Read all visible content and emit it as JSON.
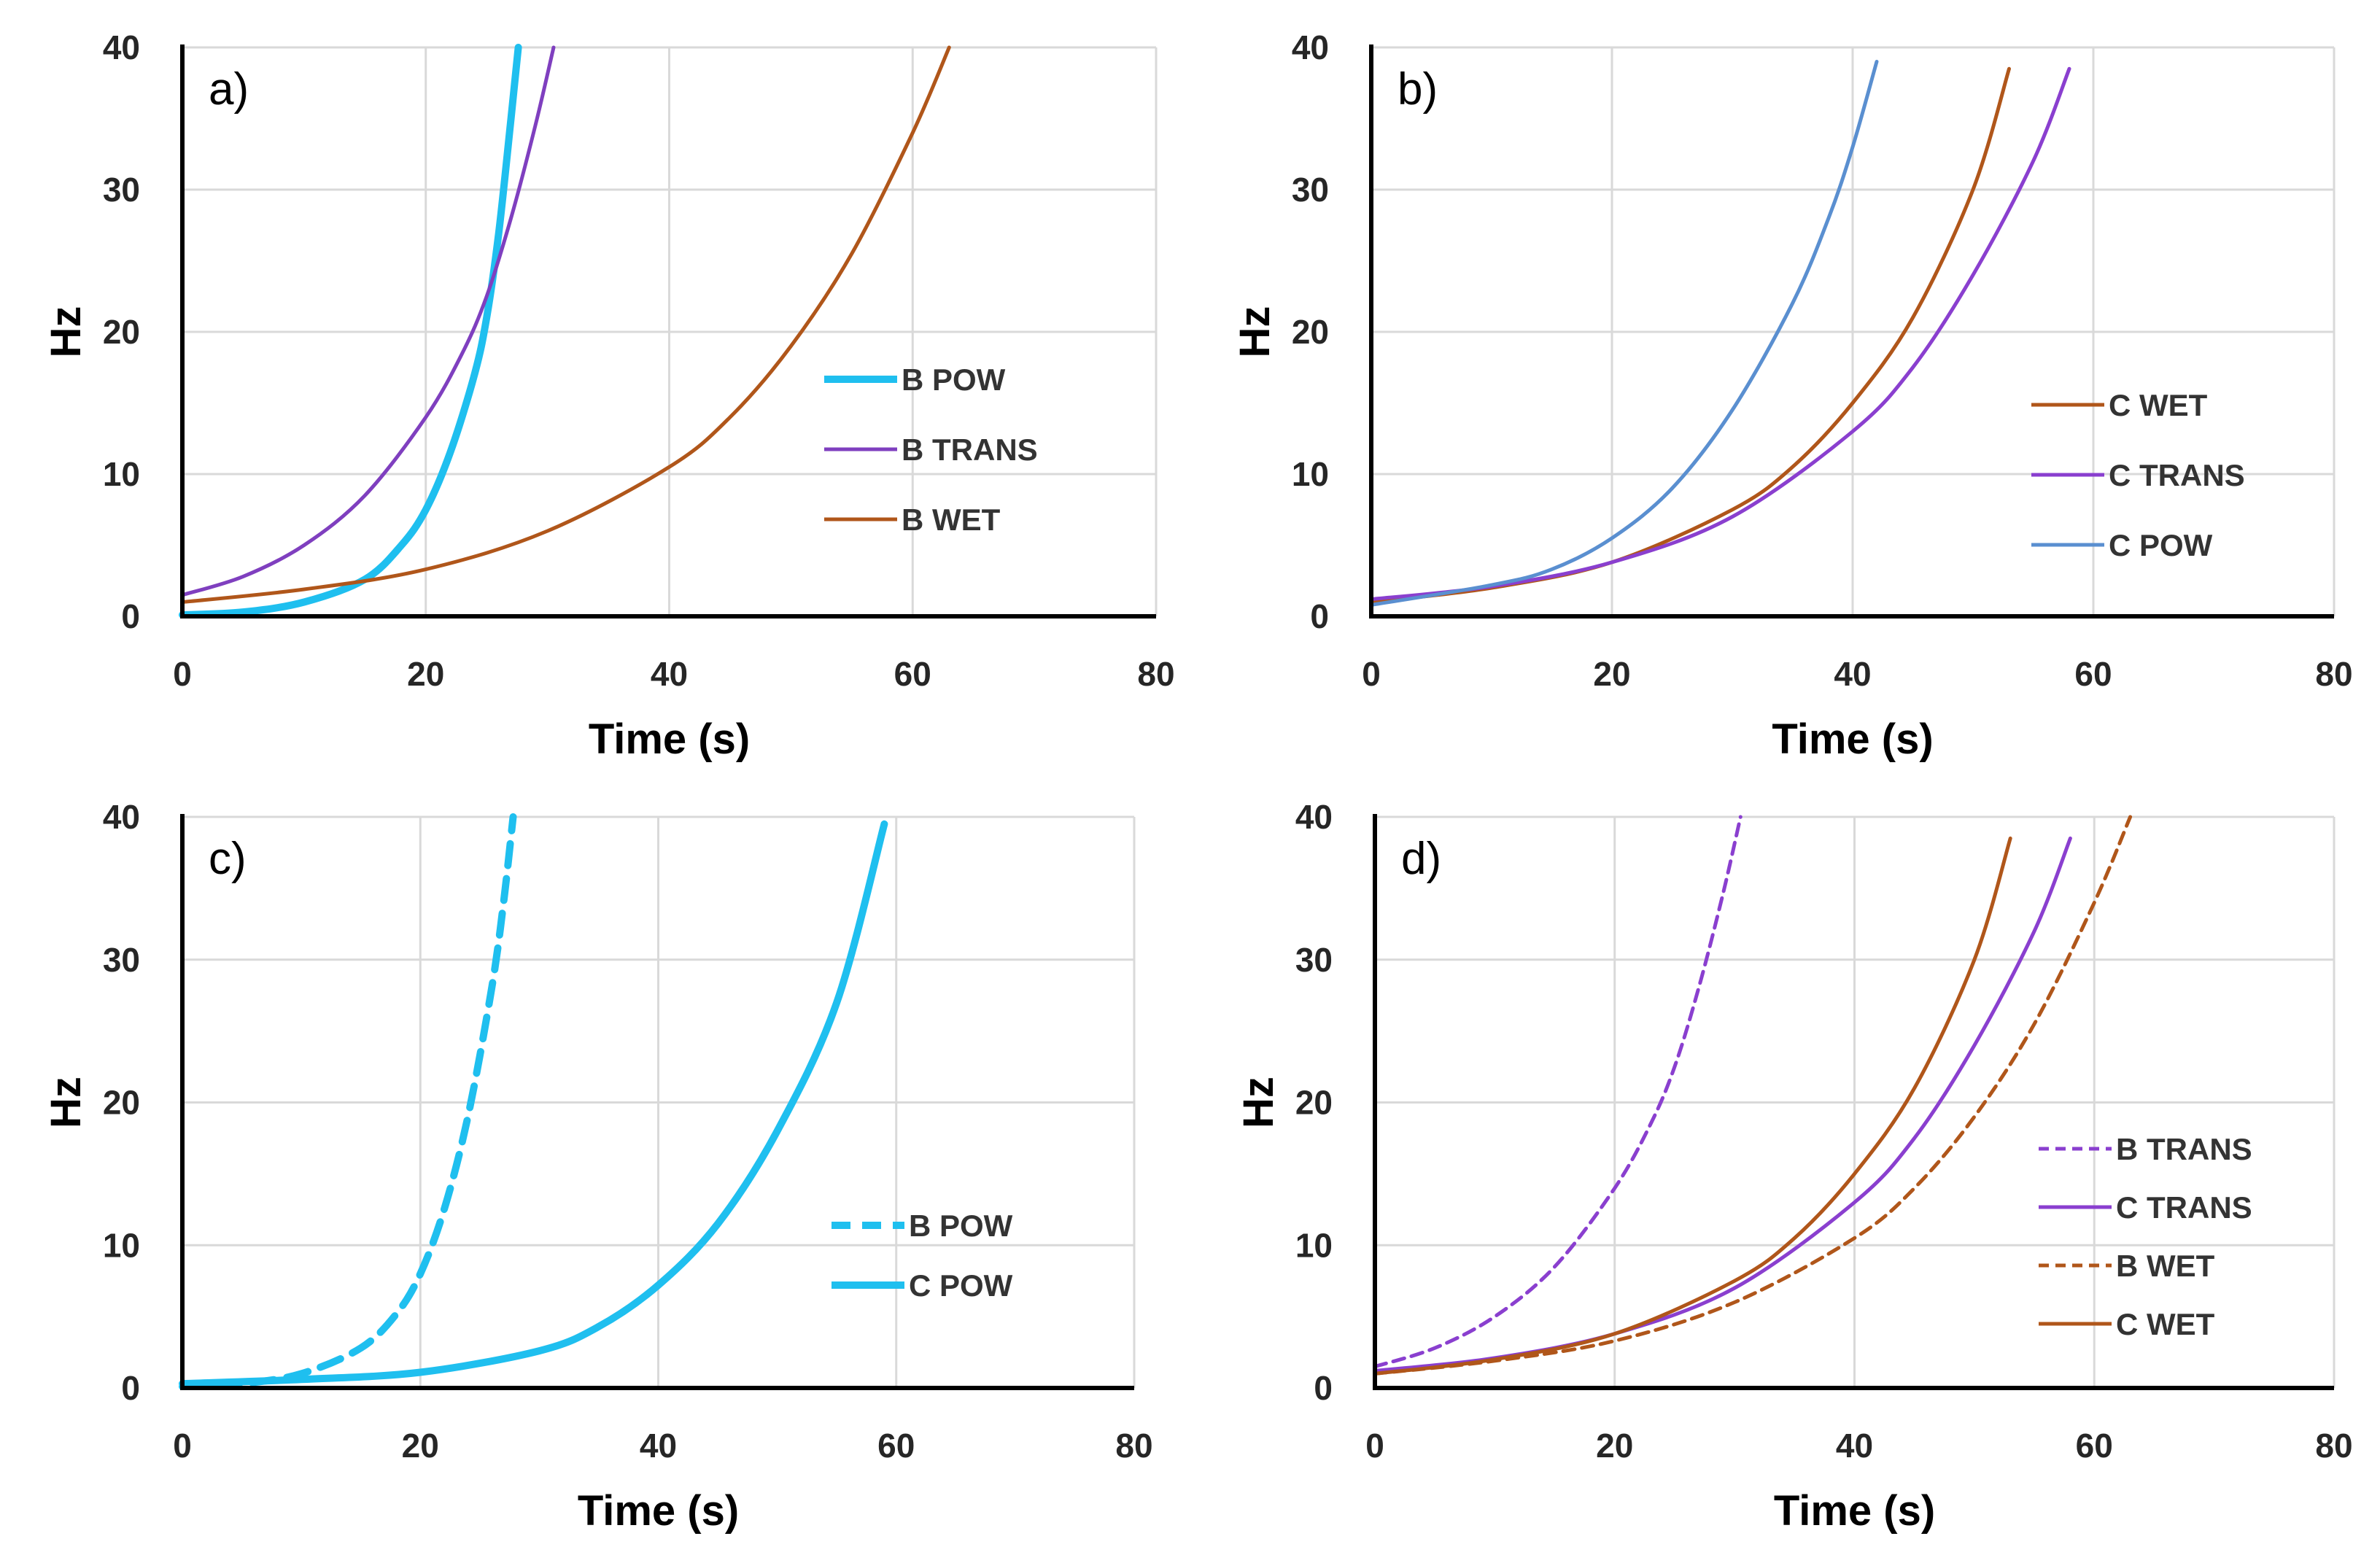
{
  "chart_data": [
    {
      "type": "line",
      "panel_label": "a)",
      "xlabel": "Time (s)",
      "ylabel": "Hz",
      "xlim": [
        0,
        80
      ],
      "ylim": [
        0,
        40
      ],
      "xticks": [
        "0",
        "20",
        "40",
        "60",
        "80"
      ],
      "yticks": [
        "0",
        "10",
        "20",
        "30",
        "40"
      ],
      "grid": true,
      "legend_position": "center-right",
      "series": [
        {
          "name": "B POW",
          "color": "#1fbfef",
          "dash": "solid",
          "width": "thick",
          "points": [
            [
              0,
              0.1
            ],
            [
              5,
              0.3
            ],
            [
              10,
              1.0
            ],
            [
              15,
              2.6
            ],
            [
              18,
              5.0
            ],
            [
              20,
              7.5
            ],
            [
              22,
              11.5
            ],
            [
              24,
              17.0
            ],
            [
              25,
              21.0
            ],
            [
              26,
              27.0
            ],
            [
              27,
              35.0
            ],
            [
              27.6,
              40.0
            ]
          ]
        },
        {
          "name": "B TRANS",
          "color": "#7f3fbf",
          "dash": "solid",
          "width": "normal",
          "points": [
            [
              0,
              1.5
            ],
            [
              5,
              2.8
            ],
            [
              10,
              5.0
            ],
            [
              15,
              8.5
            ],
            [
              20,
              14.0
            ],
            [
              23,
              18.5
            ],
            [
              25,
              22.5
            ],
            [
              27,
              28.0
            ],
            [
              29,
              34.5
            ],
            [
              30.5,
              40.0
            ]
          ]
        },
        {
          "name": "B WET",
          "color": "#b0561a",
          "dash": "solid",
          "width": "normal",
          "points": [
            [
              0,
              1.0
            ],
            [
              10,
              1.9
            ],
            [
              20,
              3.3
            ],
            [
              30,
              6.0
            ],
            [
              40,
              10.5
            ],
            [
              45,
              14.0
            ],
            [
              50,
              19.0
            ],
            [
              55,
              25.5
            ],
            [
              60,
              34.0
            ],
            [
              63,
              40.0
            ]
          ]
        }
      ]
    },
    {
      "type": "line",
      "panel_label": "b)",
      "xlabel": "Time (s)",
      "ylabel": "Hz",
      "xlim": [
        0,
        80
      ],
      "ylim": [
        0,
        40
      ],
      "xticks": [
        "0",
        "20",
        "40",
        "60",
        "80"
      ],
      "yticks": [
        "0",
        "10",
        "20",
        "30",
        "40"
      ],
      "grid": true,
      "legend_position": "bottom-right",
      "series": [
        {
          "name": "C WET",
          "color": "#b0561a",
          "dash": "solid",
          "width": "normal",
          "points": [
            [
              0,
              1.0
            ],
            [
              10,
              2.0
            ],
            [
              20,
              3.8
            ],
            [
              30,
              7.5
            ],
            [
              35,
              10.5
            ],
            [
              40,
              15.0
            ],
            [
              45,
              21.0
            ],
            [
              50,
              30.0
            ],
            [
              53,
              38.5
            ]
          ]
        },
        {
          "name": "C TRANS",
          "color": "#8a3fcf",
          "dash": "solid",
          "width": "normal",
          "points": [
            [
              0,
              1.2
            ],
            [
              10,
              2.1
            ],
            [
              20,
              3.8
            ],
            [
              30,
              7.0
            ],
            [
              40,
              13.0
            ],
            [
              45,
              17.5
            ],
            [
              50,
              24.0
            ],
            [
              55,
              32.0
            ],
            [
              58,
              38.5
            ]
          ]
        },
        {
          "name": "C POW",
          "color": "#5a8fd0",
          "dash": "solid",
          "width": "normal",
          "points": [
            [
              0,
              0.8
            ],
            [
              10,
              2.2
            ],
            [
              15,
              3.3
            ],
            [
              20,
              5.5
            ],
            [
              25,
              9.0
            ],
            [
              30,
              14.5
            ],
            [
              35,
              22.0
            ],
            [
              38,
              28.0
            ],
            [
              40,
              33.0
            ],
            [
              42,
              39.0
            ]
          ]
        }
      ]
    },
    {
      "type": "line",
      "panel_label": "c)",
      "xlabel": "Time (s)",
      "ylabel": "Hz",
      "xlim": [
        0,
        80
      ],
      "ylim": [
        0,
        40
      ],
      "xticks": [
        "0",
        "20",
        "40",
        "60",
        "80"
      ],
      "yticks": [
        "0",
        "10",
        "20",
        "30",
        "40"
      ],
      "grid": true,
      "legend_position": "center-right",
      "series": [
        {
          "name": "B POW",
          "color": "#1fbfef",
          "dash": "dashed",
          "width": "thick",
          "points": [
            [
              0,
              0.1
            ],
            [
              5,
              0.3
            ],
            [
              10,
              1.0
            ],
            [
              15,
              2.8
            ],
            [
              18,
              5.2
            ],
            [
              20,
              8.0
            ],
            [
              22,
              12.5
            ],
            [
              24,
              19.0
            ],
            [
              26,
              28.0
            ],
            [
              27,
              34.0
            ],
            [
              27.8,
              40.0
            ]
          ]
        },
        {
          "name": "C POW",
          "color": "#1fbfef",
          "dash": "solid",
          "width": "thick",
          "points": [
            [
              0,
              0.3
            ],
            [
              10,
              0.6
            ],
            [
              20,
              1.1
            ],
            [
              30,
              2.6
            ],
            [
              35,
              4.3
            ],
            [
              40,
              7.2
            ],
            [
              45,
              11.5
            ],
            [
              50,
              18.0
            ],
            [
              55,
              27.0
            ],
            [
              59,
              39.5
            ]
          ]
        }
      ]
    },
    {
      "type": "line",
      "panel_label": "d)",
      "xlabel": "Time (s)",
      "ylabel": "Hz",
      "xlim": [
        0,
        80
      ],
      "ylim": [
        0,
        40
      ],
      "xticks": [
        "0",
        "20",
        "40",
        "60",
        "80"
      ],
      "yticks": [
        "0",
        "10",
        "20",
        "30",
        "40"
      ],
      "grid": true,
      "legend_position": "bottom-right",
      "series": [
        {
          "name": "B TRANS",
          "color": "#8a3fcf",
          "dash": "dashed",
          "width": "normal",
          "points": [
            [
              0,
              1.5
            ],
            [
              5,
              2.8
            ],
            [
              10,
              5.0
            ],
            [
              15,
              8.5
            ],
            [
              20,
              14.0
            ],
            [
              23,
              18.5
            ],
            [
              25,
              22.5
            ],
            [
              27,
              28.0
            ],
            [
              29,
              34.5
            ],
            [
              30.5,
              40.0
            ]
          ]
        },
        {
          "name": "C TRANS",
          "color": "#8a3fcf",
          "dash": "solid",
          "width": "normal",
          "points": [
            [
              0,
              1.2
            ],
            [
              10,
              2.1
            ],
            [
              20,
              3.8
            ],
            [
              30,
              7.0
            ],
            [
              40,
              13.0
            ],
            [
              45,
              17.5
            ],
            [
              50,
              24.0
            ],
            [
              55,
              32.0
            ],
            [
              58,
              38.5
            ]
          ]
        },
        {
          "name": "B WET",
          "color": "#b0561a",
          "dash": "dashed",
          "width": "normal",
          "points": [
            [
              0,
              1.0
            ],
            [
              10,
              1.9
            ],
            [
              20,
              3.3
            ],
            [
              30,
              6.0
            ],
            [
              40,
              10.5
            ],
            [
              45,
              14.0
            ],
            [
              50,
              19.0
            ],
            [
              55,
              25.5
            ],
            [
              60,
              34.0
            ],
            [
              63,
              40.0
            ]
          ]
        },
        {
          "name": "C WET",
          "color": "#b0561a",
          "dash": "solid",
          "width": "normal",
          "points": [
            [
              0,
              1.0
            ],
            [
              10,
              2.0
            ],
            [
              20,
              3.8
            ],
            [
              30,
              7.5
            ],
            [
              35,
              10.5
            ],
            [
              40,
              15.0
            ],
            [
              45,
              21.0
            ],
            [
              50,
              30.0
            ],
            [
              53,
              38.5
            ]
          ]
        }
      ]
    }
  ]
}
